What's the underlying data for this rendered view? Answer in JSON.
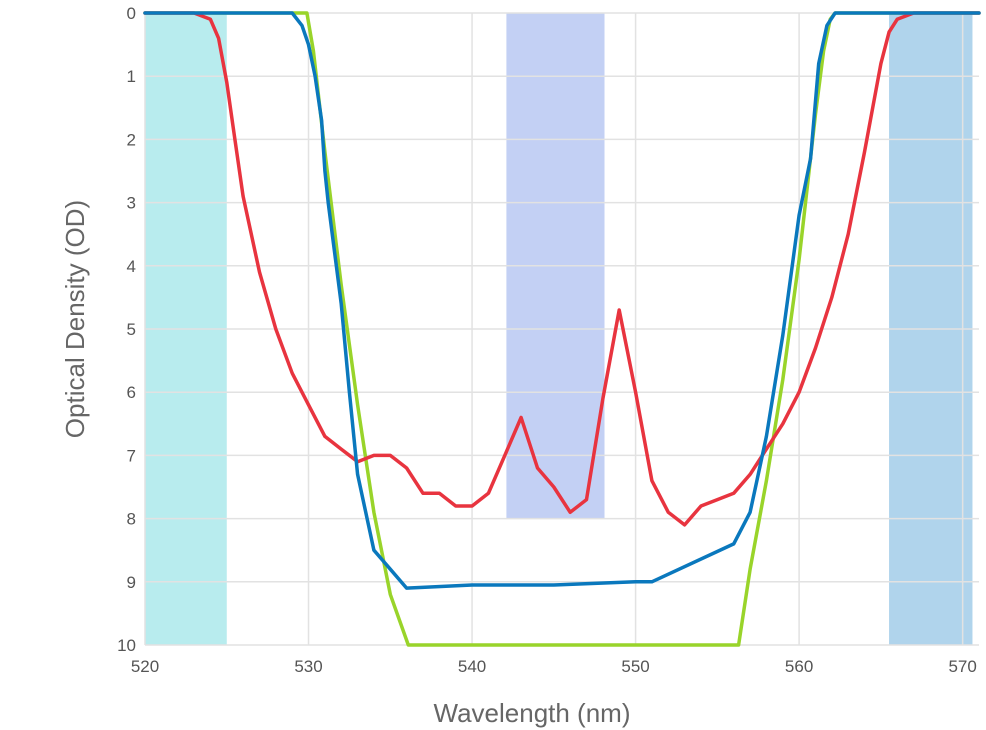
{
  "chart_data": {
    "type": "line",
    "title": "",
    "xlabel": "Wavelength (nm)",
    "ylabel": "Optical Density (OD)",
    "xlim": [
      520,
      571
    ],
    "ylim": [
      0,
      10
    ],
    "y_inverted": true,
    "grid": true,
    "x_ticks": [
      520,
      530,
      540,
      550,
      560,
      570
    ],
    "y_ticks": [
      0,
      1,
      2,
      3,
      4,
      5,
      6,
      7,
      8,
      9,
      10
    ],
    "bands": [
      {
        "x": [
          520,
          525
        ],
        "y": [
          0,
          10
        ],
        "color": "#b8ecee"
      },
      {
        "x": [
          542.1,
          548.1
        ],
        "y": [
          0,
          8
        ],
        "color": "#c3d0f4"
      },
      {
        "x": [
          565.5,
          570.6
        ],
        "y": [
          0,
          10
        ],
        "color": "#b0d4ec"
      }
    ],
    "series": [
      {
        "color": "#99d42a",
        "x": [
          520,
          528,
          529,
          529.6,
          529.9,
          530.3,
          531,
          532,
          533,
          534,
          535,
          536.1,
          556.3,
          557,
          558,
          559,
          560,
          561,
          561.5,
          561.9,
          562.2,
          571
        ],
        "y": [
          0,
          0,
          0,
          0,
          0,
          0.6,
          2.2,
          4.3,
          6.2,
          7.9,
          9.2,
          10,
          10,
          8.8,
          7.4,
          5.8,
          3.9,
          1.6,
          0.6,
          0.1,
          0,
          0
        ]
      },
      {
        "color": "#e8343f",
        "x": [
          520,
          523,
          524,
          524.5,
          525,
          525.5,
          526,
          527,
          528,
          529,
          530,
          531,
          532,
          533,
          534,
          535,
          536,
          537,
          538,
          539,
          540,
          541,
          542,
          543,
          544,
          545,
          546,
          547,
          548,
          549,
          550,
          551,
          552,
          553,
          554,
          555,
          556,
          557,
          558,
          559,
          560,
          561,
          562,
          563,
          564,
          565,
          565.5,
          566,
          567,
          571
        ],
        "y": [
          0,
          0,
          0.1,
          0.4,
          1.1,
          2,
          2.9,
          4.1,
          5,
          5.7,
          6.2,
          6.7,
          6.9,
          7.1,
          7,
          7,
          7.2,
          7.6,
          7.6,
          7.8,
          7.8,
          7.6,
          7,
          6.4,
          7.2,
          7.5,
          7.9,
          7.7,
          6.1,
          4.7,
          6,
          7.4,
          7.9,
          8.1,
          7.8,
          7.7,
          7.6,
          7.3,
          6.9,
          6.5,
          6,
          5.3,
          4.5,
          3.5,
          2.2,
          0.8,
          0.3,
          0.1,
          0,
          0
        ]
      },
      {
        "color": "#0a78bd",
        "x": [
          520,
          528,
          529,
          529.6,
          530,
          530.4,
          530.8,
          531,
          531.2,
          532,
          532.5,
          533,
          534,
          535,
          536,
          540,
          545,
          550,
          551,
          556,
          557,
          558,
          559,
          560,
          560.7,
          561.2,
          561.7,
          562.2,
          571
        ],
        "y": [
          0,
          0,
          0,
          0.2,
          0.5,
          1,
          1.7,
          2.5,
          3,
          4.6,
          6,
          7.3,
          8.5,
          8.8,
          9.1,
          9.05,
          9.05,
          9.0,
          9.0,
          8.4,
          7.9,
          6.7,
          5.1,
          3.2,
          2.3,
          0.8,
          0.2,
          0,
          0
        ]
      }
    ]
  }
}
